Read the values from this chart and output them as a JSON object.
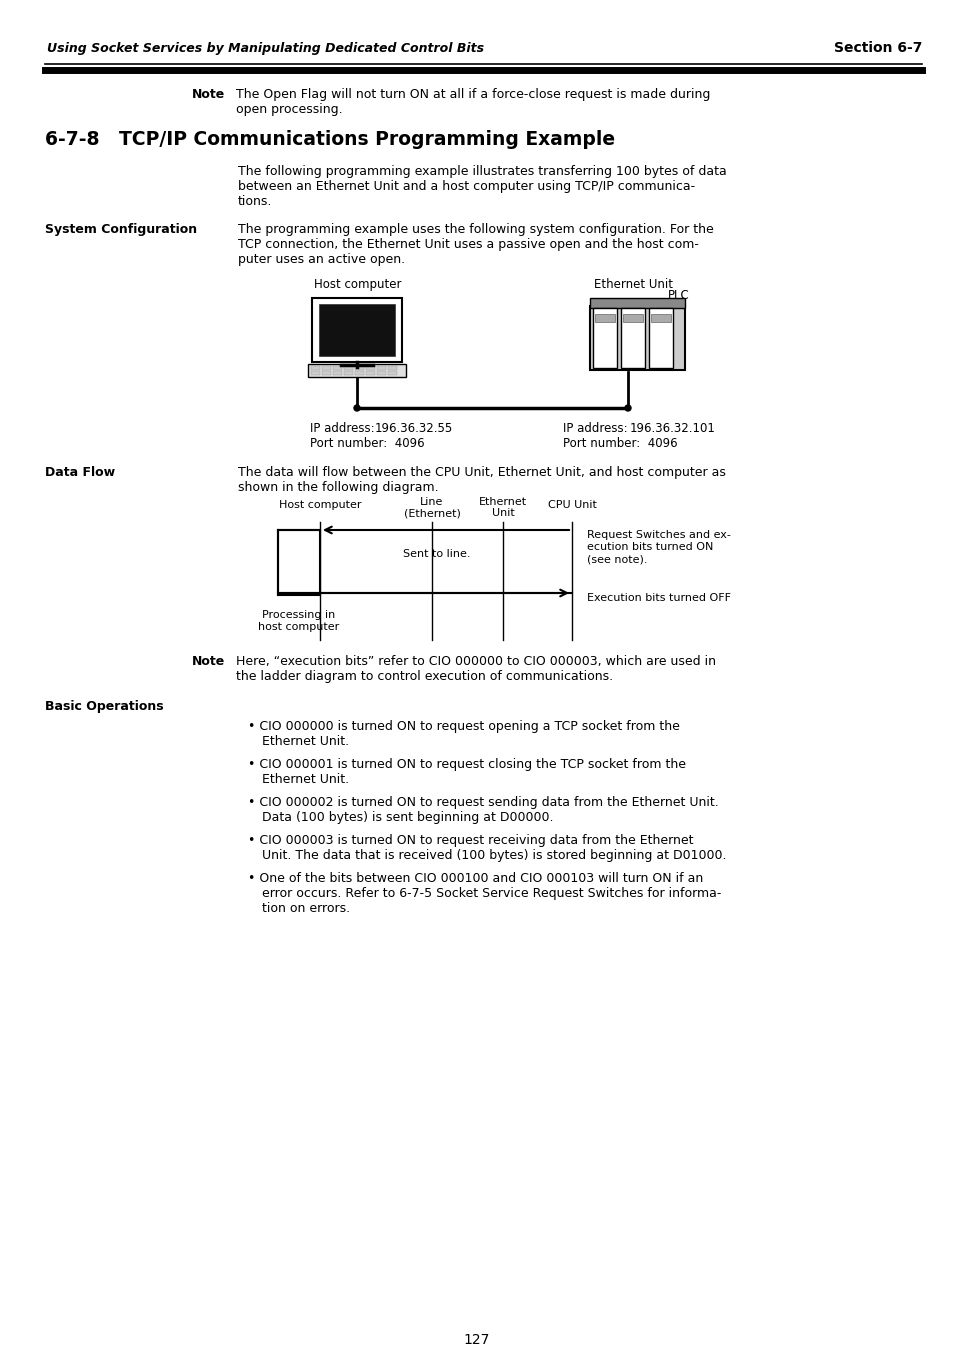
{
  "page_bg": "#ffffff",
  "header_italic_text": "Using Socket Services by Manipulating Dedicated Control Bits",
  "header_right_text": "Section 6-7",
  "note_line1": "The Open Flag will not turn ON at all if a force-close request is made during",
  "note_line2": "open processing.",
  "section_title": "6-7-8   TCP/IP Communications Programming Example",
  "para1_line1": "The following programming example illustrates transferring 100 bytes of data",
  "para1_line2": "between an Ethernet Unit and a host computer using TCP/IP communica-",
  "para1_line3": "tions.",
  "sys_config_label": "System Configuration",
  "sys_config_line1": "The programming example uses the following system configuration. For the",
  "sys_config_line2": "TCP connection, the Ethernet Unit uses a passive open and the host com-",
  "sys_config_line3": "puter uses an active open.",
  "host_computer_label": "Host computer",
  "ethernet_unit_label": "Ethernet Unit",
  "plc_label": "PLC",
  "ip_host_label": "IP address:",
  "ip_host_val": "196.36.32.55",
  "port_host_label": "Port number:  4096",
  "ip_eth_label": "IP address:",
  "ip_eth_val": "196.36.32.101",
  "port_eth_label": "Port number:  4096",
  "data_flow_label": "Data Flow",
  "data_flow_line1": "The data will flow between the CPU Unit, Ethernet Unit, and host computer as",
  "data_flow_line2": "shown in the following diagram.",
  "diag_host_computer": "Host computer",
  "diag_line_label1": "Line",
  "diag_line_label2": "(Ethernet)",
  "diag_eth_label1": "Ethernet",
  "diag_eth_label2": "Unit",
  "diag_cpu_unit": "CPU Unit",
  "diag_note1_l1": "Request Switches and ex-",
  "diag_note1_l2": "ecution bits turned ON",
  "diag_note1_l3": "(see note).",
  "diag_note2": "Execution bits turned OFF",
  "diag_sent_to_line": "Sent to line.",
  "diag_processing_l1": "Processing in",
  "diag_processing_l2": "host computer",
  "note2_line1": "Here, “execution bits” refer to CIO 000000 to CIO 000003, which are used in",
  "note2_line2": "the ladder diagram to control execution of communications.",
  "basic_ops_label": "Basic Operations",
  "bullet1_l1": "• CIO 000000 is turned ON to request opening a TCP socket from the",
  "bullet1_l2": "Ethernet Unit.",
  "bullet2_l1": "• CIO 000001 is turned ON to request closing the TCP socket from the",
  "bullet2_l2": "Ethernet Unit.",
  "bullet3_l1": "• CIO 000002 is turned ON to request sending data from the Ethernet Unit.",
  "bullet3_l2": "Data (100 bytes) is sent beginning at D00000.",
  "bullet4_l1": "• CIO 000003 is turned ON to request receiving data from the Ethernet",
  "bullet4_l2": "Unit. The data that is received (100 bytes) is stored beginning at D01000.",
  "bullet5_l1": "• One of the bits between CIO 000100 and CIO 000103 will turn ON if an",
  "bullet5_l2": "error occurs. Refer to 6-7-5 Socket Service Request Switches for informa-",
  "bullet5_l3": "tion on errors.",
  "page_number": "127"
}
